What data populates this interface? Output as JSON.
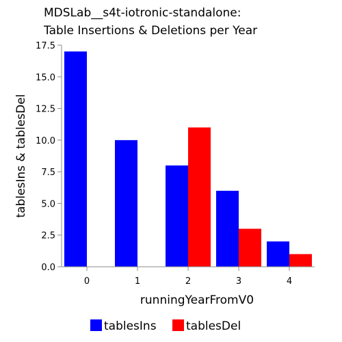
{
  "chart_data": {
    "type": "bar",
    "title": [
      "MDSLab__s4t-iotronic-standalone:",
      "Table Insertions & Deletions per Year"
    ],
    "xlabel": "runningYearFromV0",
    "ylabel": "tablesIns & tablesDel",
    "categories": [
      "0",
      "1",
      "2",
      "3",
      "4"
    ],
    "series": [
      {
        "name": "tablesIns",
        "color": "#0000ff",
        "values": [
          17,
          10,
          8,
          6,
          2
        ]
      },
      {
        "name": "tablesDel",
        "color": "#ff0000",
        "values": [
          0,
          0,
          11,
          3,
          1
        ]
      }
    ],
    "ylim": [
      0,
      17.5
    ],
    "yticks": [
      "0.0",
      "2.5",
      "5.0",
      "7.5",
      "10.0",
      "12.5",
      "15.0",
      "17.5"
    ],
    "grid": false,
    "legend_position": "bottom"
  }
}
